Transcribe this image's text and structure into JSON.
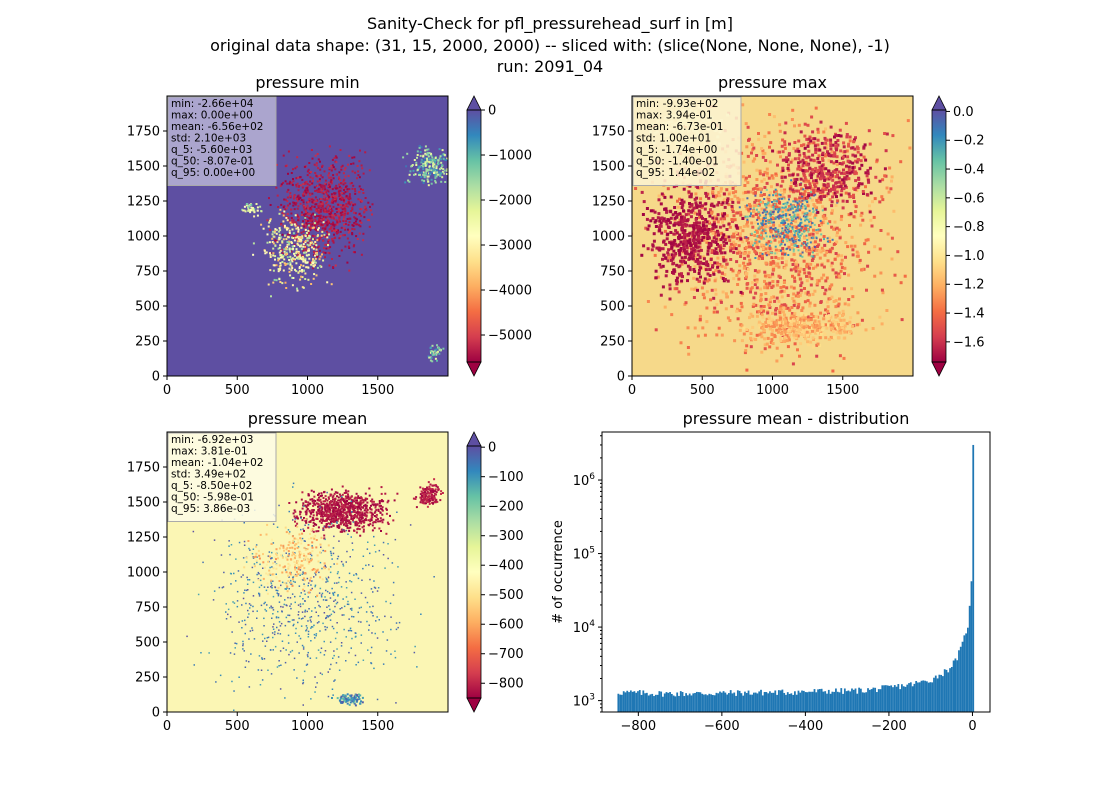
{
  "figure": {
    "title_lines": [
      "Sanity-Check for pfl_pressurehead_surf in [m]",
      "original data shape: (31, 15, 2000, 2000) -- sliced with: (slice(None, None, None), -1)",
      "run: 2091_04"
    ]
  },
  "chart_data": [
    {
      "type": "heatmap",
      "title": "pressure min",
      "x_ticks": [
        0,
        500,
        1000,
        1500
      ],
      "y_ticks": [
        0,
        250,
        500,
        750,
        1000,
        1250,
        1500,
        1750
      ],
      "xlim": [
        0,
        2000
      ],
      "ylim": [
        0,
        2000
      ],
      "colormap": "Spectral",
      "colorbar": {
        "ticks": [
          0,
          -1000,
          -2000,
          -3000,
          -4000,
          -5000
        ],
        "tick_labels": [
          "0",
          "−1000",
          "−2000",
          "−3000",
          "−4000",
          "−5000"
        ],
        "range": [
          -5600,
          0
        ],
        "extend": "both",
        "extend_colors": {
          "min": "#9e0142",
          "max": "#5e4fa2"
        }
      },
      "stats": [
        "min: -2.66e+04",
        "max: 0.00e+00",
        "mean: -6.56e+02",
        "std: 2.10e+03",
        "q_5: -5.60e+03",
        "q_50: -8.07e-01",
        "q_95: 0.00e+00"
      ],
      "background_color": "#5e4fa2",
      "stats_box_color": "#b9b4d6"
    },
    {
      "type": "heatmap",
      "title": "pressure max",
      "x_ticks": [
        0,
        500,
        1000,
        1500
      ],
      "y_ticks": [
        0,
        250,
        500,
        750,
        1000,
        1250,
        1500,
        1750
      ],
      "xlim": [
        0,
        2000
      ],
      "ylim": [
        0,
        2000
      ],
      "colormap": "Spectral",
      "colorbar": {
        "ticks": [
          0.0,
          -0.2,
          -0.4,
          -0.6,
          -0.8,
          -1.0,
          -1.2,
          -1.4,
          -1.6
        ],
        "tick_labels": [
          "0.0",
          "−0.2",
          "−0.4",
          "−0.6",
          "−0.8",
          "−1.0",
          "−1.2",
          "−1.4",
          "−1.6"
        ],
        "range": [
          -1.74,
          0.01
        ],
        "extend": "both",
        "extend_colors": {
          "min": "#9e0142",
          "max": "#5e4fa2"
        }
      },
      "stats": [
        "min: -9.93e+02",
        "max: 3.94e-01",
        "mean: -6.73e-01",
        "std: 1.00e+01",
        "q_5: -1.74e+00",
        "q_50: -1.40e-01",
        "q_95: 1.44e-02"
      ],
      "background_color": "#f6d98a",
      "stats_box_color": "#fbf3d2"
    },
    {
      "type": "heatmap",
      "title": "pressure mean",
      "x_ticks": [
        0,
        500,
        1000,
        1500
      ],
      "y_ticks": [
        0,
        250,
        500,
        750,
        1000,
        1250,
        1500,
        1750
      ],
      "xlim": [
        0,
        2000
      ],
      "ylim": [
        0,
        2000
      ],
      "colormap": "Spectral",
      "colorbar": {
        "ticks": [
          0,
          -100,
          -200,
          -300,
          -400,
          -500,
          -600,
          -700,
          -800
        ],
        "tick_labels": [
          "0",
          "−100",
          "−200",
          "−300",
          "−400",
          "−500",
          "−600",
          "−700",
          "−800"
        ],
        "range": [
          -850,
          4
        ],
        "extend": "both",
        "extend_colors": {
          "min": "#9e0142",
          "max": "#5e4fa2"
        }
      },
      "stats": [
        "min: -6.92e+03",
        "max: 3.81e-01",
        "mean: -1.04e+02",
        "std: 3.49e+02",
        "q_5: -8.50e+02",
        "q_50: -5.98e-01",
        "q_95: 3.86e-03"
      ],
      "background_color": "#fbf6b4",
      "stats_box_color": "#fdfbe6"
    },
    {
      "type": "bar",
      "title": "pressure mean - distribution",
      "xlabel": "",
      "ylabel": "# of occurrence",
      "x_ticks": [
        -800,
        -600,
        -400,
        -200,
        0
      ],
      "x_tick_labels": [
        "−800",
        "−600",
        "−400",
        "−200",
        "0"
      ],
      "y_scale": "log",
      "y_ticks": [
        1000,
        10000,
        100000,
        1000000
      ],
      "y_tick_labels": [
        {
          "base": "10",
          "exp": "3"
        },
        {
          "base": "10",
          "exp": "4"
        },
        {
          "base": "10",
          "exp": "5"
        },
        {
          "base": "10",
          "exp": "6"
        }
      ],
      "xlim": [
        -887,
        42
      ],
      "ylim": [
        700,
        4500000
      ],
      "bin_range": [
        -850,
        4
      ],
      "bar_color": "#1f77b4",
      "bins": [
        {
          "x": -850,
          "count": 1300
        },
        {
          "x": -750,
          "count": 1250
        },
        {
          "x": -650,
          "count": 1250
        },
        {
          "x": -550,
          "count": 1280
        },
        {
          "x": -450,
          "count": 1300
        },
        {
          "x": -350,
          "count": 1350
        },
        {
          "x": -300,
          "count": 1350
        },
        {
          "x": -250,
          "count": 1400
        },
        {
          "x": -200,
          "count": 1500
        },
        {
          "x": -150,
          "count": 1650
        },
        {
          "x": -100,
          "count": 1900
        },
        {
          "x": -60,
          "count": 2600
        },
        {
          "x": -40,
          "count": 3500
        },
        {
          "x": -25,
          "count": 5500
        },
        {
          "x": -15,
          "count": 9000
        },
        {
          "x": -8,
          "count": 12000
        },
        {
          "x": -4,
          "count": 42000
        },
        {
          "x": 0,
          "count": 3000000
        }
      ]
    }
  ]
}
